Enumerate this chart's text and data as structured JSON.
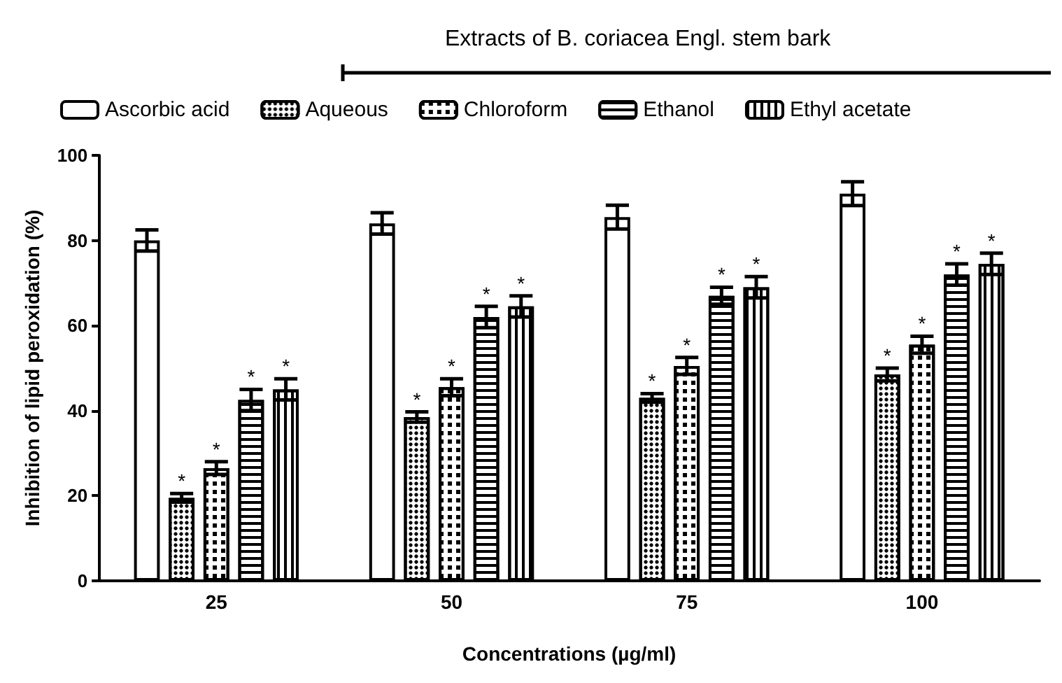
{
  "chart_data": {
    "type": "bar",
    "xlabel": "Concentrations (µg/ml)",
    "ylabel": "Inhibition of lipid peroxidation (%)",
    "annotations": [
      "Extracts of B. coriacea Engl. stem bark"
    ],
    "categories": [
      "25",
      "50",
      "75",
      "100"
    ],
    "ylim": [
      0,
      100
    ],
    "yticks": [
      0,
      20,
      40,
      60,
      80,
      100
    ],
    "grid": false,
    "legend": "top",
    "series": [
      {
        "name": "Ascorbic acid",
        "color": "#ffffff",
        "values": [
          80,
          84,
          85.5,
          91
        ],
        "errors": [
          2.5,
          2.5,
          2.8,
          2.8
        ]
      },
      {
        "name": "Aqueous",
        "color": "#ffffff",
        "values": [
          19.5,
          38.5,
          43,
          48.5
        ],
        "errors": [
          1,
          1.2,
          1,
          1.5
        ],
        "value_labels": [
          "*",
          "*",
          "*",
          "*"
        ]
      },
      {
        "name": "Chloroform",
        "color": "#ffffff",
        "values": [
          26.5,
          45.5,
          50.5,
          55.5
        ],
        "errors": [
          1.5,
          2,
          2,
          2
        ],
        "value_labels": [
          "*",
          "*",
          "*",
          "*"
        ]
      },
      {
        "name": "Ethanol",
        "color": "#ffffff",
        "values": [
          42.5,
          62,
          67,
          72
        ],
        "errors": [
          2.5,
          2.5,
          2,
          2.5
        ],
        "value_labels": [
          "*",
          "*",
          "*",
          "*"
        ]
      },
      {
        "name": "Ethyl acetate",
        "color": "#ffffff",
        "values": [
          45,
          64.5,
          69,
          74.5
        ],
        "errors": [
          2.5,
          2.5,
          2.5,
          2.5
        ],
        "value_labels": [
          "*",
          "*",
          "*",
          "*"
        ]
      }
    ]
  }
}
